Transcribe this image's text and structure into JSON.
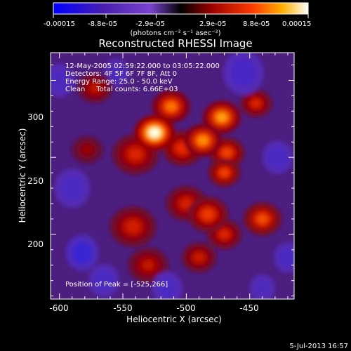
{
  "colorbar": {
    "tick_labels": [
      "-0.00015",
      "-8.8e-05",
      "-2.9e-05",
      "2.9e-05",
      "8.8e-05",
      "0.00015"
    ],
    "tick_values": [
      -0.00015,
      -8.8e-05,
      -2.9e-05,
      2.9e-05,
      8.8e-05,
      0.00015
    ],
    "range": [
      -0.00015,
      0.00015
    ],
    "unit_label": "(photons cm⁻² s⁻¹ asec⁻²)"
  },
  "chart_data": {
    "type": "heatmap",
    "title": "Reconstructed RHESSI Image",
    "xlabel": "Heliocentric X (arcsec)",
    "ylabel": "Heliocentric Y (arcsec)",
    "xlim": [
      -607,
      -415
    ],
    "ylim": [
      158,
      318
    ],
    "x_ticks": [
      -600,
      -550,
      -500,
      -450
    ],
    "y_ticks": [
      200,
      250,
      300
    ],
    "annotations": [
      "12-May-2005 02:59:22.000 to 03:05:22.000",
      "Detectors: 4F 5F 6F 7F 8F, Att 0",
      "Energy Range: 25.0 - 50.0 keV",
      "Clean     Total counts: 6.66E+03"
    ],
    "peak_label": "Position of Peak = [-525,266]",
    "peak": [
      -525,
      266
    ],
    "sources": [
      {
        "x": -525,
        "y": 266,
        "level": 1.0,
        "radius": 14
      },
      {
        "x": -512,
        "y": 283,
        "level": 0.7,
        "radius": 13
      },
      {
        "x": -503,
        "y": 256,
        "level": 0.55,
        "radius": 14
      },
      {
        "x": -540,
        "y": 252,
        "level": 0.5,
        "radius": 16
      },
      {
        "x": -472,
        "y": 276,
        "level": 0.78,
        "radius": 13
      },
      {
        "x": -487,
        "y": 261,
        "level": 0.75,
        "radius": 13
      },
      {
        "x": -468,
        "y": 253,
        "level": 0.6,
        "radius": 12
      },
      {
        "x": -445,
        "y": 285,
        "level": 0.5,
        "radius": 11
      },
      {
        "x": -440,
        "y": 210,
        "level": 0.62,
        "radius": 13
      },
      {
        "x": -483,
        "y": 213,
        "level": 0.58,
        "radius": 14
      },
      {
        "x": -470,
        "y": 200,
        "level": 0.5,
        "radius": 12
      },
      {
        "x": -500,
        "y": 220,
        "level": 0.48,
        "radius": 14
      },
      {
        "x": -542,
        "y": 205,
        "level": 0.48,
        "radius": 16
      },
      {
        "x": -530,
        "y": 180,
        "level": 0.42,
        "radius": 14
      },
      {
        "x": -572,
        "y": 295,
        "level": 0.42,
        "radius": 12
      },
      {
        "x": -578,
        "y": 255,
        "level": 0.3,
        "radius": 11
      },
      {
        "x": -470,
        "y": 240,
        "level": 0.6,
        "radius": 11
      },
      {
        "x": -490,
        "y": 185,
        "level": 0.45,
        "radius": 12
      },
      {
        "x": -590,
        "y": 230,
        "level": -0.45,
        "radius": 14
      },
      {
        "x": -582,
        "y": 188,
        "level": -0.75,
        "radius": 13
      },
      {
        "x": -565,
        "y": 170,
        "level": -0.5,
        "radius": 12
      },
      {
        "x": -455,
        "y": 305,
        "level": -0.55,
        "radius": 16
      },
      {
        "x": -428,
        "y": 250,
        "level": -0.5,
        "radius": 12
      },
      {
        "x": -420,
        "y": 185,
        "level": -0.5,
        "radius": 11
      },
      {
        "x": -515,
        "y": 165,
        "level": -0.45,
        "radius": 12
      },
      {
        "x": -600,
        "y": 300,
        "level": -0.4,
        "radius": 12
      },
      {
        "x": -555,
        "y": 305,
        "level": -0.35,
        "radius": 10
      },
      {
        "x": -440,
        "y": 165,
        "level": -0.35,
        "radius": 10
      }
    ]
  },
  "footer": {
    "timestamp": "5-Jul-2013 16:57"
  }
}
